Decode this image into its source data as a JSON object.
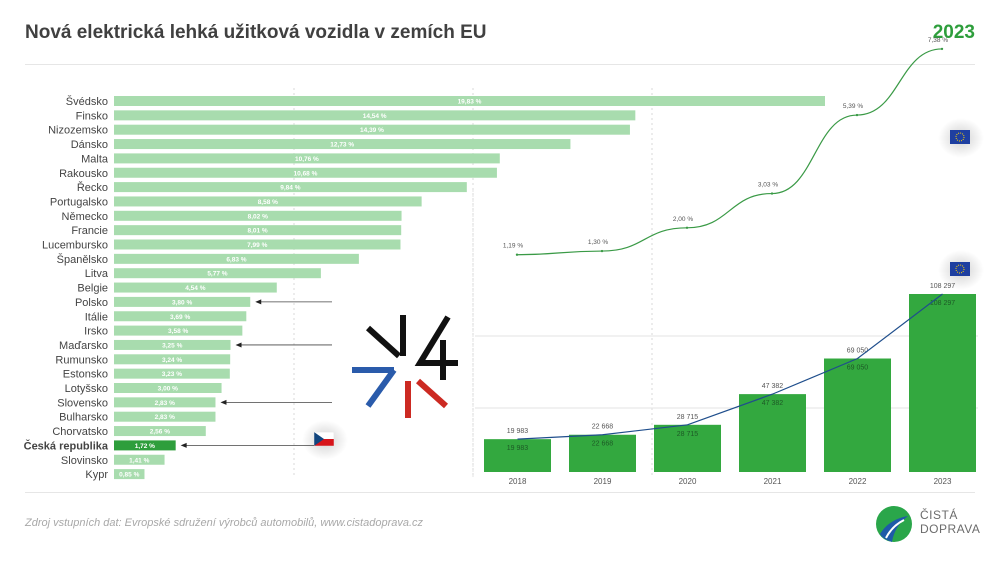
{
  "header": {
    "title": "Nová elektrická lehká užitková vozidla v zemích EU",
    "year": "2023"
  },
  "footer": {
    "source": "Zdroj vstupních dat: Evropské sdružení výrobců automobilů, www.cistadoprava.cz",
    "logo_line1": "ČISTÁ",
    "logo_line2": "DOPRAVA"
  },
  "colors": {
    "bar_light": "#a8dcae",
    "bar_highlight": "#2e9e3c",
    "column": "#33a83f",
    "share_line": "#3a9a46",
    "count_line": "#1f4e8c"
  },
  "icons": [
    "eu-flag-icon",
    "czech-flag-icon",
    "v4-logo-icon",
    "cista-doprava-logo-icon"
  ],
  "chart_data": [
    {
      "type": "bar",
      "orientation": "horizontal",
      "categories": [
        "Švédsko",
        "Finsko",
        "Nizozemsko",
        "Dánsko",
        "Malta",
        "Rakousko",
        "Řecko",
        "Portugalsko",
        "Německo",
        "Francie",
        "Lucembursko",
        "Španělsko",
        "Litva",
        "Belgie",
        "Polsko",
        "Itálie",
        "Irsko",
        "Maďarsko",
        "Rumunsko",
        "Estonsko",
        "Lotyšsko",
        "Slovensko",
        "Bulharsko",
        "Chorvatsko",
        "Česká republika",
        "Slovinsko",
        "Kypr"
      ],
      "values": [
        19.83,
        14.54,
        14.39,
        12.73,
        10.76,
        10.68,
        9.84,
        8.58,
        8.02,
        8.01,
        7.99,
        6.83,
        5.77,
        4.54,
        3.8,
        3.69,
        3.58,
        3.25,
        3.24,
        3.23,
        3.0,
        2.83,
        2.83,
        2.56,
        1.72,
        1.41,
        0.85
      ],
      "value_labels": [
        "19,83 %",
        "14,54 %",
        "14,39 %",
        "12,73 %",
        "10,76 %",
        "10,68 %",
        "9,84 %",
        "8,58 %",
        "8,02 %",
        "8,01 %",
        "7,99 %",
        "6,83 %",
        "5,77 %",
        "4,54 %",
        "3,80 %",
        "3,69 %",
        "3,58 %",
        "3,25 %",
        "3,24 %",
        "3,23 %",
        "3,00 %",
        "2,83 %",
        "2,83 %",
        "2,56 %",
        "1,72 %",
        "1,41 %",
        "0,85 %"
      ],
      "highlighted": "Česká republika",
      "arrows_to": [
        "Polsko",
        "Maďarsko",
        "Slovensko",
        "Česká republika"
      ],
      "xlim": [
        0,
        20
      ]
    },
    {
      "type": "bar",
      "categories": [
        "2018",
        "2019",
        "2020",
        "2021",
        "2022",
        "2023"
      ],
      "values": [
        19983,
        22668,
        28715,
        47382,
        69050,
        108297
      ],
      "value_labels": [
        "19 983",
        "22 668",
        "28 715",
        "47 382",
        "69 050",
        "108 297"
      ],
      "ylim": [
        0,
        118000
      ]
    },
    {
      "type": "line",
      "x": [
        "2018",
        "2019",
        "2020",
        "2021",
        "2022",
        "2023"
      ],
      "values": [
        1.19,
        1.3,
        2.0,
        3.03,
        5.39,
        7.38
      ],
      "value_labels": [
        "1,19 %",
        "1,30 %",
        "2,00 %",
        "3,03 %",
        "5,39 %",
        "7,38 %"
      ],
      "ylim": [
        0,
        8
      ]
    }
  ]
}
